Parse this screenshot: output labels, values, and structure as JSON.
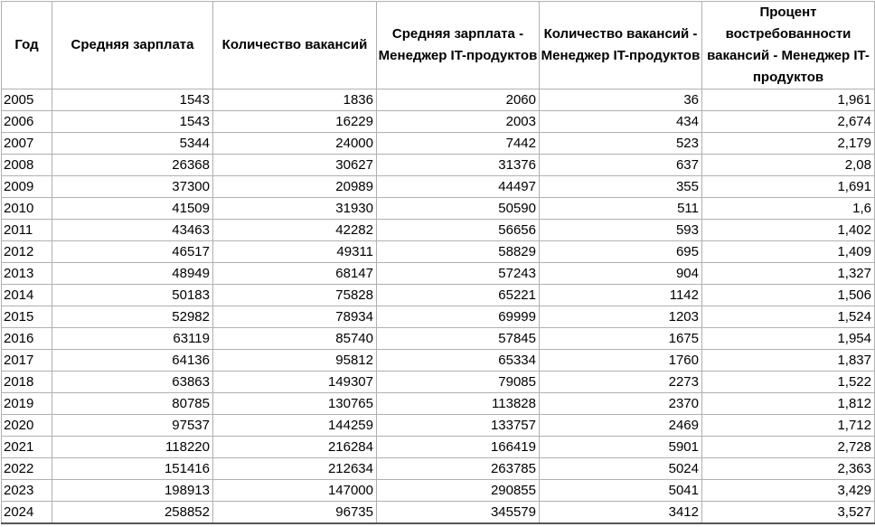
{
  "headers": [
    "Год",
    "Средняя зарплата",
    "Количество вакансий",
    "Средняя зарплата - Менеджер IT-продуктов",
    "Количество вакансий - Менеджер IT-продуктов",
    "Процент востребованности вакансий - Менеджер IT-продуктов"
  ],
  "rows": [
    [
      "2005",
      "1543",
      "1836",
      "2060",
      "36",
      "1,961"
    ],
    [
      "2006",
      "1543",
      "16229",
      "2003",
      "434",
      "2,674"
    ],
    [
      "2007",
      "5344",
      "24000",
      "7442",
      "523",
      "2,179"
    ],
    [
      "2008",
      "26368",
      "30627",
      "31376",
      "637",
      "2,08"
    ],
    [
      "2009",
      "37300",
      "20989",
      "44497",
      "355",
      "1,691"
    ],
    [
      "2010",
      "41509",
      "31930",
      "50590",
      "511",
      "1,6"
    ],
    [
      "2011",
      "43463",
      "42282",
      "56656",
      "593",
      "1,402"
    ],
    [
      "2012",
      "46517",
      "49311",
      "58829",
      "695",
      "1,409"
    ],
    [
      "2013",
      "48949",
      "68147",
      "57243",
      "904",
      "1,327"
    ],
    [
      "2014",
      "50183",
      "75828",
      "65221",
      "1142",
      "1,506"
    ],
    [
      "2015",
      "52982",
      "78934",
      "69999",
      "1203",
      "1,524"
    ],
    [
      "2016",
      "63119",
      "85740",
      "57845",
      "1675",
      "1,954"
    ],
    [
      "2017",
      "64136",
      "95812",
      "65334",
      "1760",
      "1,837"
    ],
    [
      "2018",
      "63863",
      "149307",
      "79085",
      "2273",
      "1,522"
    ],
    [
      "2019",
      "80785",
      "130765",
      "113828",
      "2370",
      "1,812"
    ],
    [
      "2020",
      "97537",
      "144259",
      "133757",
      "2469",
      "1,712"
    ],
    [
      "2021",
      "118220",
      "216284",
      "166419",
      "5901",
      "2,728"
    ],
    [
      "2022",
      "151416",
      "212634",
      "263785",
      "5024",
      "2,363"
    ],
    [
      "2023",
      "198913",
      "147000",
      "290855",
      "5041",
      "3,429"
    ],
    [
      "2024",
      "258852",
      "96735",
      "345579",
      "3412",
      "3,527"
    ]
  ]
}
